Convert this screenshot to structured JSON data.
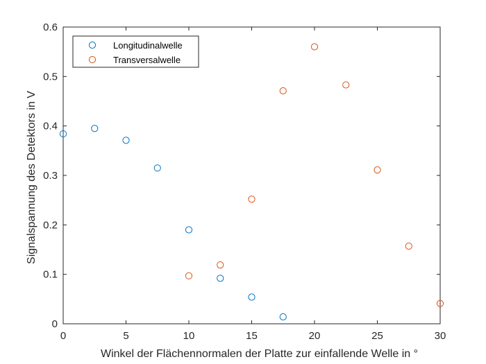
{
  "chart_data": {
    "type": "scatter",
    "title": "",
    "xlabel": "Winkel der Flächennormalen der Platte zur einfallende Welle in °",
    "ylabel": "Signalspannung des Detektors in V",
    "xlim": [
      0,
      30
    ],
    "ylim": [
      0,
      0.6
    ],
    "xticks": [
      0,
      5,
      10,
      15,
      20,
      25,
      30
    ],
    "yticks": [
      0,
      0.1,
      0.2,
      0.3,
      0.4,
      0.5,
      0.6
    ],
    "xtick_labels": [
      "0",
      "5",
      "10",
      "15",
      "20",
      "25",
      "30"
    ],
    "ytick_labels": [
      "0",
      "0.1",
      "0.2",
      "0.3",
      "0.4",
      "0.5",
      "0.6"
    ],
    "grid": false,
    "legend_position": "top-left",
    "marker": "open-circle",
    "series": [
      {
        "name": "Longitudinalwelle",
        "color": "#0072BD",
        "x": [
          0,
          2.5,
          5,
          7.5,
          10,
          12.5,
          15,
          17.5
        ],
        "y": [
          0.384,
          0.395,
          0.371,
          0.315,
          0.19,
          0.092,
          0.054,
          0.014
        ]
      },
      {
        "name": "Transversalwelle",
        "color": "#D95319",
        "x": [
          10,
          12.5,
          15,
          17.5,
          20,
          22.5,
          25,
          27.5,
          30
        ],
        "y": [
          0.097,
          0.119,
          0.252,
          0.471,
          0.56,
          0.483,
          0.311,
          0.157,
          0.041
        ]
      }
    ]
  }
}
